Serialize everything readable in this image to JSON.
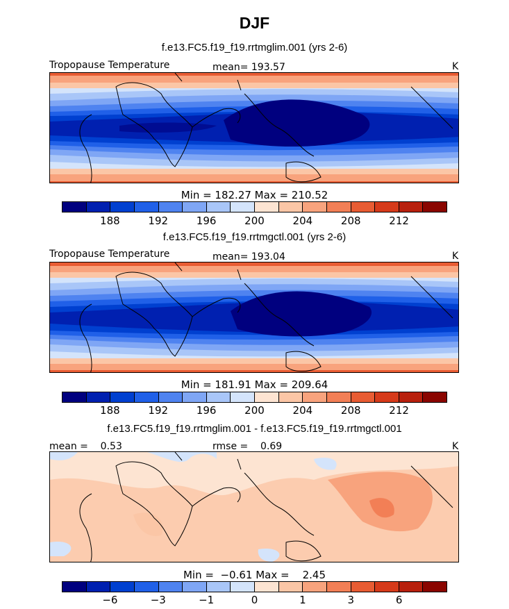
{
  "page": {
    "title": "DJF"
  },
  "panels": [
    {
      "subtitle": "f.e13.FC5.f19_f19.rrtmglim.001 (yrs 2-6)",
      "variable": "Tropopause Temperature",
      "stat": "mean= 193.57",
      "units": "K",
      "minmax": "Min = 182.27 Max = 210.52",
      "colorbar": [
        "#00007f",
        "#0020b0",
        "#0040d0",
        "#2060e8",
        "#4f83f0",
        "#7fa6f5",
        "#a9c6f8",
        "#d4e4fb",
        "#fde4d2",
        "#fbc6a6",
        "#f8a37d",
        "#f27f56",
        "#e85c33",
        "#d63a1a",
        "#b8200d",
        "#8a0500"
      ],
      "ticks": [
        "188",
        "192",
        "196",
        "200",
        "204",
        "208",
        "212"
      ]
    },
    {
      "subtitle": "f.e13.FC5.f19_f19.rrtmgctl.001 (yrs 2-6)",
      "variable": "Tropopause Temperature",
      "stat": "mean= 193.04",
      "units": "K",
      "minmax": "Min = 181.91 Max = 209.64",
      "colorbar": [
        "#00007f",
        "#0020b0",
        "#0040d0",
        "#2060e8",
        "#4f83f0",
        "#7fa6f5",
        "#a9c6f8",
        "#d4e4fb",
        "#fde4d2",
        "#fbc6a6",
        "#f8a37d",
        "#f27f56",
        "#e85c33",
        "#d63a1a",
        "#b8200d",
        "#8a0500"
      ],
      "ticks": [
        "188",
        "192",
        "196",
        "200",
        "204",
        "208",
        "212"
      ]
    },
    {
      "subtitle": "f.e13.FC5.f19_f19.rrtmglim.001 - f.e13.FC5.f19_f19.rrtmgctl.001",
      "stat_left": "mean =    0.53",
      "stat_right": "rmse =    0.69",
      "units": "K",
      "minmax": "Min =  −0.61 Max =    2.45",
      "colorbar": [
        "#00007f",
        "#0020b0",
        "#0040d0",
        "#2060e8",
        "#4f83f0",
        "#7fa6f5",
        "#a9c6f8",
        "#d4e4fb",
        "#fde4d2",
        "#fbc6a6",
        "#f8a37d",
        "#f27f56",
        "#e85c33",
        "#d63a1a",
        "#b8200d",
        "#8a0500"
      ],
      "ticks": [
        "−6",
        "−3",
        "−1",
        "0",
        "1",
        "3",
        "6"
      ]
    }
  ]
}
